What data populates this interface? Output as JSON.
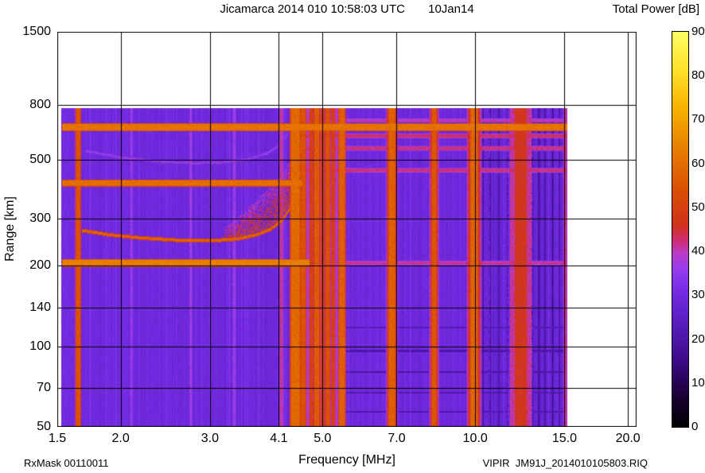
{
  "header": {
    "title": "Jicamarca 2014 010 10:58:03 UTC       10Jan14",
    "colorbar_title": "Total Power [dB]"
  },
  "footer": {
    "rx_mask": "RxMask 00110011",
    "file_label": "VIPIR  JM91J_2014010105803.RIQ"
  },
  "chart_data": {
    "type": "heatmap",
    "title": "Jicamarca 2014 010 10:58:03 UTC       10Jan14",
    "xlabel": "Frequency [MHz]",
    "ylabel": "Range [km]",
    "x_scale": "log",
    "y_scale": "log",
    "xlim": [
      1.5,
      20.8
    ],
    "ylim": [
      50,
      1500
    ],
    "x_ticks": [
      1.5,
      2,
      3,
      4.1,
      5,
      7,
      10,
      15,
      20
    ],
    "x_tick_labels": [
      "1.5",
      "2.0",
      "3.0",
      "4.1",
      "5.0",
      "7.0",
      "10.0",
      "15.0",
      "20.0"
    ],
    "y_ticks": [
      50,
      70,
      100,
      140,
      200,
      300,
      500,
      800,
      1500
    ],
    "y_tick_labels": [
      "50",
      "70",
      "100",
      "140",
      "200",
      "300",
      "500",
      "800",
      "1500"
    ],
    "grid": true,
    "colorbar": {
      "label": "Total Power [dB]",
      "min": 0,
      "max": 90,
      "ticks": [
        0,
        10,
        20,
        30,
        40,
        50,
        60,
        70,
        80,
        90
      ],
      "tick_labels": [
        "0",
        "10",
        "20",
        "30",
        "40",
        "50",
        "60",
        "70",
        "80",
        "90"
      ],
      "stops": [
        [
          0.0,
          0,
          0,
          0
        ],
        [
          0.07,
          25,
          0,
          50
        ],
        [
          0.17,
          62,
          12,
          138
        ],
        [
          0.28,
          95,
          32,
          200
        ],
        [
          0.35,
          122,
          46,
          232
        ],
        [
          0.4,
          152,
          62,
          238
        ],
        [
          0.44,
          188,
          60,
          200
        ],
        [
          0.47,
          205,
          45,
          120
        ],
        [
          0.51,
          208,
          50,
          28
        ],
        [
          0.6,
          218,
          80,
          5
        ],
        [
          0.7,
          232,
          125,
          0
        ],
        [
          0.8,
          246,
          175,
          0
        ],
        [
          0.9,
          255,
          225,
          40
        ],
        [
          1.0,
          255,
          255,
          100
        ]
      ]
    },
    "data_extent": {
      "f_min": 1.53,
      "f_max": 15.2,
      "r_min": 50,
      "r_max": 780
    },
    "background_db": 29,
    "vertical_stripes": [
      {
        "f": 1.65,
        "w": 4,
        "db": 55
      },
      {
        "f": 4.92,
        "w": 62,
        "db": 39
      },
      {
        "f": 4.42,
        "w": 10,
        "db": 59
      },
      {
        "f": 4.58,
        "w": 5,
        "db": 54
      },
      {
        "f": 4.75,
        "w": 3,
        "db": 50
      },
      {
        "f": 4.87,
        "w": 5,
        "db": 56
      },
      {
        "f": 5.0,
        "w": 3,
        "db": 51
      },
      {
        "f": 5.12,
        "w": 4,
        "db": 54
      },
      {
        "f": 5.25,
        "w": 3,
        "db": 50
      },
      {
        "f": 5.46,
        "w": 6,
        "db": 57
      },
      {
        "f": 6.85,
        "w": 12,
        "db": 44
      },
      {
        "f": 6.85,
        "w": 7,
        "db": 57
      },
      {
        "f": 8.3,
        "w": 10,
        "db": 43
      },
      {
        "f": 8.3,
        "w": 5,
        "db": 55
      },
      {
        "f": 9.95,
        "w": 16,
        "db": 44
      },
      {
        "f": 9.95,
        "w": 8,
        "db": 58
      },
      {
        "f": 12.3,
        "w": 26,
        "db": 41
      },
      {
        "f": 12.3,
        "w": 14,
        "db": 47
      },
      {
        "f": 15.05,
        "w": 3,
        "db": 42
      },
      {
        "f": 2.1,
        "w": 2,
        "db": 36
      },
      {
        "f": 2.75,
        "w": 2,
        "db": 37
      },
      {
        "f": 3.35,
        "w": 3,
        "db": 36
      },
      {
        "f": 4.15,
        "w": 3,
        "db": 41
      }
    ],
    "dark_vertical_lines": [
      {
        "f": 10.35,
        "w": 2,
        "db": 20
      },
      {
        "f": 10.7,
        "w": 2,
        "db": 20
      },
      {
        "f": 11.15,
        "w": 2,
        "db": 21
      },
      {
        "f": 11.6,
        "w": 2,
        "db": 21
      },
      {
        "f": 12.95,
        "w": 2,
        "db": 20
      },
      {
        "f": 13.35,
        "w": 3,
        "db": 20
      },
      {
        "f": 13.75,
        "w": 2,
        "db": 20
      },
      {
        "f": 14.2,
        "w": 3,
        "db": 20
      },
      {
        "f": 14.65,
        "w": 2,
        "db": 21
      }
    ],
    "horizontal_bands": [
      {
        "r": 660,
        "th": 7,
        "db": 61,
        "f_min": 1.53,
        "f_max": 15.2
      },
      {
        "r": 700,
        "th": 3,
        "db": 40,
        "f_min": 4.4,
        "f_max": 15.2
      },
      {
        "r": 612,
        "th": 4,
        "db": 43,
        "f_min": 4.4,
        "f_max": 15.2
      },
      {
        "r": 550,
        "th": 4,
        "db": 42,
        "f_min": 4.4,
        "f_max": 15.2
      },
      {
        "r": 455,
        "th": 4,
        "db": 42,
        "f_min": 4.4,
        "f_max": 15.2
      },
      {
        "r": 408,
        "th": 6,
        "db": 60,
        "f_min": 1.53,
        "f_max": 4.55
      },
      {
        "r": 205,
        "th": 7,
        "db": 63,
        "f_min": 1.53,
        "f_max": 4.7
      },
      {
        "r": 205,
        "th": 4,
        "db": 41,
        "f_min": 4.7,
        "f_max": 15.2
      }
    ],
    "dark_horizontal_lines": [
      {
        "r": 118,
        "th": 2,
        "db": 22,
        "f_min": 4.6,
        "f_max": 15.2
      },
      {
        "r": 96,
        "th": 3,
        "db": 20,
        "f_min": 4.6,
        "f_max": 15.2
      },
      {
        "r": 80,
        "th": 2,
        "db": 20,
        "f_min": 4.6,
        "f_max": 15.2
      },
      {
        "r": 67,
        "th": 2,
        "db": 21,
        "f_min": 4.6,
        "f_max": 15.2
      },
      {
        "r": 57,
        "th": 2,
        "db": 21,
        "f_min": 4.6,
        "f_max": 15.2
      }
    ],
    "ionogram_trace": {
      "db": 60,
      "thickness": 2,
      "points": [
        [
          1.68,
          272
        ],
        [
          1.9,
          262
        ],
        [
          2.2,
          255
        ],
        [
          2.6,
          250
        ],
        [
          3.0,
          249
        ],
        [
          3.4,
          253
        ],
        [
          3.7,
          262
        ],
        [
          3.95,
          275
        ],
        [
          4.15,
          295
        ],
        [
          4.3,
          325
        ],
        [
          4.4,
          370
        ],
        [
          4.46,
          430
        ],
        [
          4.52,
          530
        ],
        [
          4.58,
          655
        ]
      ]
    },
    "second_hop_trace": {
      "db": 37,
      "thickness": 3,
      "points": [
        [
          1.7,
          540
        ],
        [
          2.0,
          510
        ],
        [
          2.4,
          492
        ],
        [
          2.8,
          486
        ],
        [
          3.2,
          490
        ],
        [
          3.6,
          505
        ],
        [
          3.9,
          530
        ],
        [
          4.1,
          565
        ],
        [
          4.25,
          615
        ],
        [
          4.35,
          680
        ]
      ]
    },
    "scatter_region": {
      "f_min": 3.2,
      "f_max": 4.58,
      "db": 52,
      "min_spread_km": 25,
      "max_spread_km": 200,
      "density": 0.45
    }
  }
}
